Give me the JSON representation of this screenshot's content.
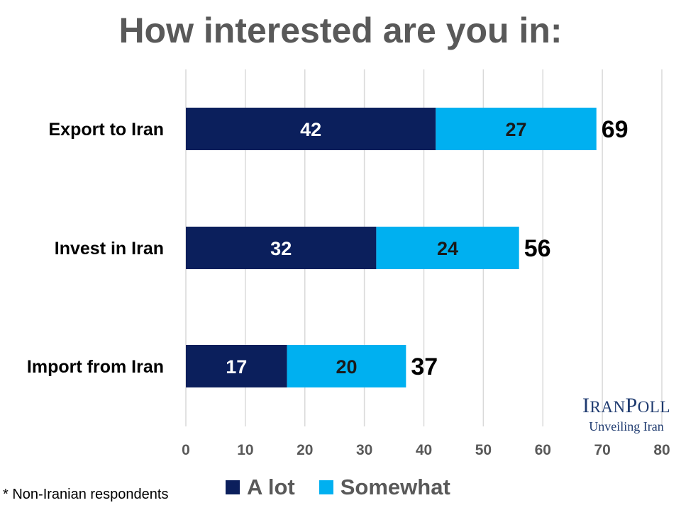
{
  "title": "How interested are you in:",
  "footnote": "* Non-Iranian respondents",
  "logo": {
    "brand_cap1": "I",
    "brand_sm1": "RAN",
    "brand_cap2": "P",
    "brand_sm2": "OLL",
    "tagline": "Unveiling Iran"
  },
  "colors": {
    "a_lot": "#0b1f5c",
    "somewhat": "#00b0f0",
    "grid": "#d9d9d9",
    "axis_text": "#595959"
  },
  "chart_data": {
    "type": "bar",
    "orientation": "horizontal",
    "stacked": true,
    "title": "How interested are you in:",
    "categories": [
      "Export to Iran",
      "Invest in Iran",
      "Import from Iran"
    ],
    "series": [
      {
        "name": "A lot",
        "values": [
          42,
          32,
          17
        ]
      },
      {
        "name": "Somewhat",
        "values": [
          27,
          24,
          20
        ]
      }
    ],
    "totals": [
      "69",
      "56",
      "37"
    ],
    "xlim": [
      0,
      80
    ],
    "xticks": [
      "0",
      "10",
      "20",
      "30",
      "40",
      "50",
      "60",
      "70",
      "80"
    ],
    "grid": true,
    "legend": "bottom"
  }
}
